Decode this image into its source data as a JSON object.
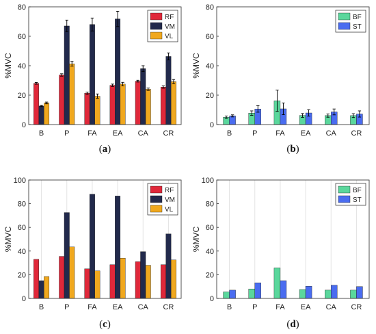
{
  "colors": {
    "RF": "#e0283a",
    "VM": "#222a4c",
    "VL": "#f0a81e",
    "BF": "#5ad79c",
    "ST": "#4a6cf0"
  },
  "chart_data": [
    {
      "type": "bar",
      "caption_open": "(",
      "caption_letter": "a",
      "caption_close": ")",
      "categories": [
        "B",
        "P",
        "FA",
        "EA",
        "CA",
        "CR"
      ],
      "ylabel": "%MVC",
      "ylim": [
        0,
        80
      ],
      "yticks": [
        "0",
        "20",
        "40",
        "60",
        "80"
      ],
      "legend_position": "top-right",
      "error_bars": true,
      "series": [
        {
          "name": "RF",
          "color_key": "RF",
          "values": [
            28,
            33.7,
            21.3,
            26.7,
            29.5,
            25.5
          ],
          "errors": [
            0.6,
            0.8,
            0.8,
            0.8,
            0.6,
            0.8
          ]
        },
        {
          "name": "VM",
          "color_key": "VM",
          "values": [
            12.6,
            67,
            68,
            71.8,
            38,
            46.3
          ],
          "errors": [
            0.4,
            4,
            4.4,
            5.2,
            2,
            2.4
          ]
        },
        {
          "name": "VL",
          "color_key": "VL",
          "values": [
            14.7,
            41.3,
            19.3,
            27.5,
            24,
            29.2
          ],
          "errors": [
            0.6,
            1.6,
            1.5,
            1.2,
            0.8,
            1.4
          ]
        }
      ]
    },
    {
      "type": "bar",
      "caption_open": "(",
      "caption_letter": "b",
      "caption_close": ")",
      "categories": [
        "B",
        "P",
        "FA",
        "EA",
        "CA",
        "CR"
      ],
      "ylabel": "%MVC",
      "ylim": [
        0,
        80
      ],
      "yticks": [
        "0",
        "20",
        "40",
        "60",
        "80"
      ],
      "legend_position": "top-right",
      "error_bars": true,
      "series": [
        {
          "name": "BF",
          "color_key": "BF",
          "values": [
            5,
            7.8,
            16.2,
            6.2,
            6.1,
            6.1
          ],
          "errors": [
            0.8,
            1.5,
            7.2,
            1.3,
            1.1,
            1.3
          ]
        },
        {
          "name": "ST",
          "color_key": "ST",
          "values": [
            5.9,
            10.6,
            10.7,
            7.9,
            8.6,
            7.2
          ],
          "errors": [
            0.7,
            2.2,
            4,
            2.2,
            2,
            2.1
          ]
        }
      ]
    },
    {
      "type": "bar",
      "caption_open": "(",
      "caption_letter": "c",
      "caption_close": ")",
      "categories": [
        "B",
        "P",
        "FA",
        "EA",
        "CA",
        "CR"
      ],
      "ylabel": "%MVC",
      "ylim": [
        0,
        100
      ],
      "yticks": [
        "0",
        "20",
        "40",
        "60",
        "80",
        "100"
      ],
      "legend_position": "top-right",
      "error_bars": false,
      "grid": "vertical",
      "series": [
        {
          "name": "RF",
          "color_key": "RF",
          "values": [
            33,
            35.5,
            25,
            28.5,
            31,
            28.5
          ]
        },
        {
          "name": "VM",
          "color_key": "VM",
          "values": [
            15,
            72.5,
            88,
            86.5,
            39.5,
            54.5
          ]
        },
        {
          "name": "VL",
          "color_key": "VL",
          "values": [
            18.5,
            43.5,
            23.3,
            34,
            28,
            32.5
          ]
        }
      ]
    },
    {
      "type": "bar",
      "caption_open": "(",
      "caption_letter": "d",
      "caption_close": ")",
      "categories": [
        "B",
        "P",
        "FA",
        "EA",
        "CA",
        "CR"
      ],
      "ylabel": "%MVC",
      "ylim": [
        0,
        100
      ],
      "yticks": [
        "0",
        "20",
        "40",
        "60",
        "80",
        "100"
      ],
      "legend_position": "top-right",
      "error_bars": false,
      "grid": "vertical",
      "series": [
        {
          "name": "BF",
          "color_key": "BF",
          "values": [
            5.5,
            8,
            25.8,
            7.5,
            7,
            7
          ]
        },
        {
          "name": "ST",
          "color_key": "ST",
          "values": [
            7,
            13.2,
            15,
            10.3,
            11.2,
            10
          ]
        }
      ]
    }
  ]
}
